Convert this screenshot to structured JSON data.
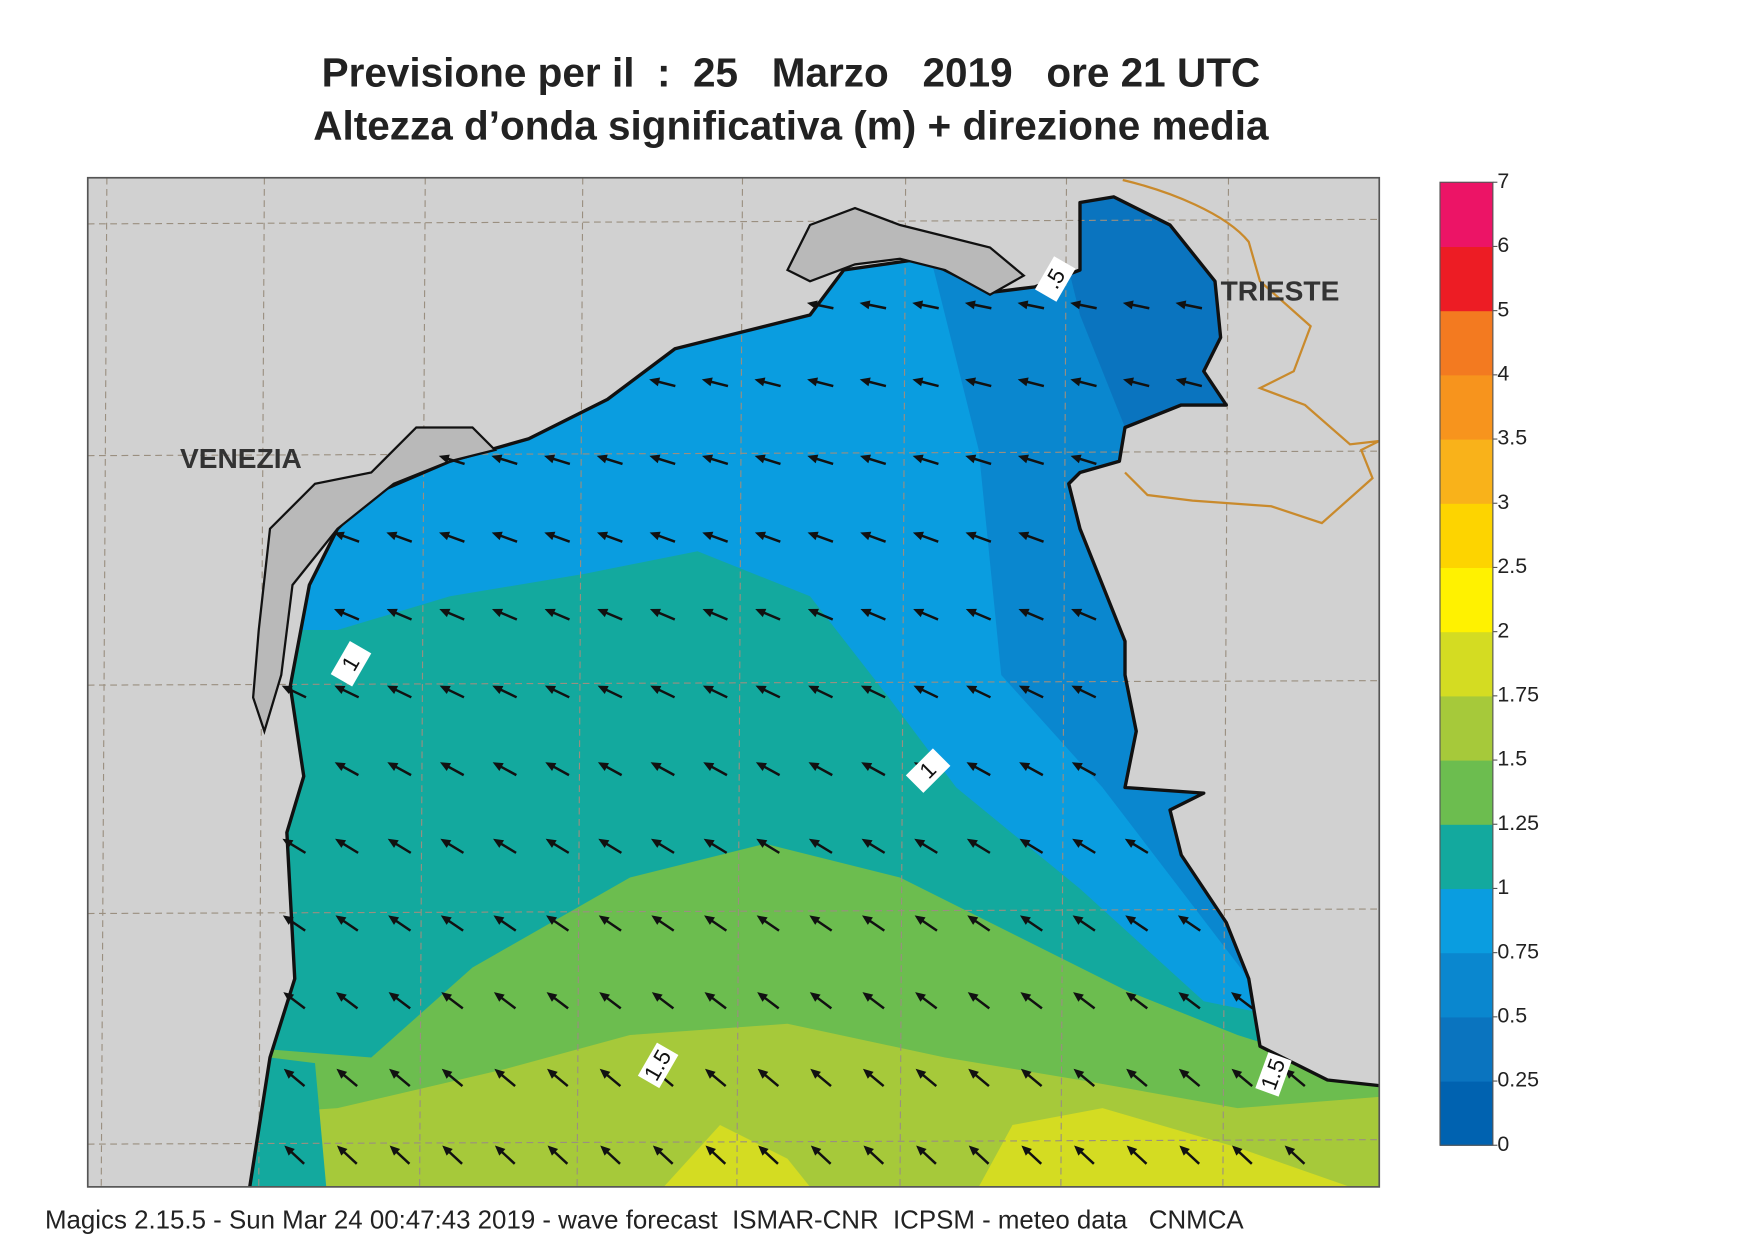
{
  "header": {
    "title": "Previsione per il  :  25   Marzo   2019   ore 21 UTC",
    "subtitle": "Altezza d’onda significativa (m) + direzione media"
  },
  "map": {
    "places": [
      "VENEZIA",
      "TRIESTE"
    ],
    "contour_labels": [
      "1",
      "1",
      ".5",
      "1.5",
      "1.5"
    ]
  },
  "colorbar": {
    "ticks": [
      0,
      0.25,
      0.5,
      0.75,
      1,
      1.25,
      1.5,
      1.75,
      2,
      2.5,
      3,
      3.5,
      4,
      5,
      6,
      7
    ],
    "colors": [
      "#0062b0",
      "#0a74bf",
      "#0a87cf",
      "#0a9de0",
      "#13a99e",
      "#6cbd4f",
      "#a6c93a",
      "#d4dc22",
      "#fff200",
      "#fdd400",
      "#f9b21a",
      "#f7941d",
      "#f37a20",
      "#ed1c24",
      "#ec1466"
    ]
  },
  "footer": "Magics 2.15.5 - Sun Mar 24 00:47:43 2019 - wave forecast  ISMAR-CNR  ICPSM - meteo data   CNMCA"
}
